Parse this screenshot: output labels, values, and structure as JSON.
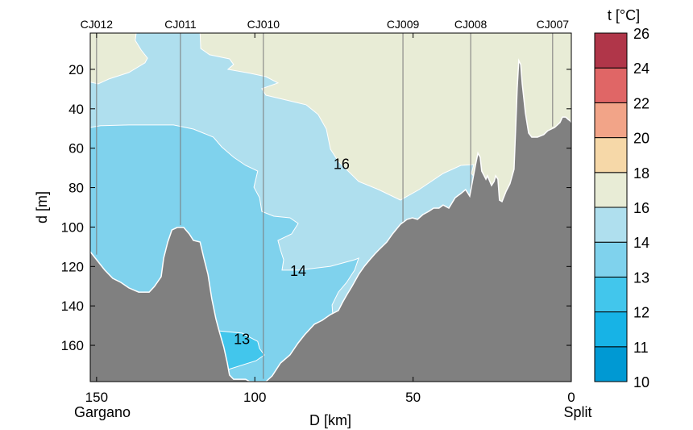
{
  "chart_data": {
    "type": "contour-section",
    "xlabel": "D [km]",
    "ylabel": "d [m]",
    "xlim": [
      152,
      0
    ],
    "ylim": [
      1.6,
      178.4
    ],
    "x_reversed": true,
    "y_reversed": true,
    "xticks": [
      150,
      100,
      50,
      0
    ],
    "yticks": [
      20,
      40,
      60,
      80,
      100,
      120,
      140,
      160
    ],
    "x_endpoint_labels": {
      "left": "Gargano",
      "right": "Split"
    },
    "grid": false,
    "colorbar": {
      "title": "t [°C]",
      "placement": "right",
      "levels": [
        10,
        11,
        12,
        13,
        14,
        16,
        18,
        20,
        22,
        24,
        26
      ],
      "colors": [
        "#0099d3",
        "#17b3e6",
        "#42c6ec",
        "#7fd2ed",
        "#afdfee",
        "#e8ecd6",
        "#f6d8a8",
        "#f2a488",
        "#e06666",
        "#b03649"
      ]
    },
    "stations": [
      {
        "name": "CJ012",
        "D": 150.0,
        "max_depth": 114
      },
      {
        "name": "CJ011",
        "D": 123.5,
        "max_depth": 99
      },
      {
        "name": "CJ010",
        "D": 97.3,
        "max_depth": 177
      },
      {
        "name": "CJ009",
        "D": 53.2,
        "max_depth": 98
      },
      {
        "name": "CJ008",
        "D": 31.8,
        "max_depth": 82
      },
      {
        "name": "CJ007",
        "D": 5.9,
        "max_depth": 49
      }
    ],
    "regions": [
      {
        "range": "16-18",
        "color": "#e8ecd6",
        "polygon": [
          [
            152,
            1.6
          ],
          [
            0,
            1.6
          ],
          [
            0,
            178.4
          ],
          [
            152,
            178.4
          ]
        ]
      },
      {
        "range": "14-16",
        "color": "#afdfee",
        "polygon": [
          [
            152,
            26.5
          ],
          [
            149.5,
            27.4
          ],
          [
            146.1,
            24.9
          ],
          [
            139.8,
            21.6
          ],
          [
            134.7,
            16.7
          ],
          [
            133.9,
            14.3
          ],
          [
            135.9,
            10.2
          ],
          [
            137.8,
            5.3
          ],
          [
            137.5,
            1.6
          ],
          [
            117.3,
            1.6
          ],
          [
            117.1,
            9.4
          ],
          [
            114.3,
            12.6
          ],
          [
            108,
            14.7
          ],
          [
            106.7,
            17.5
          ],
          [
            108.5,
            20
          ],
          [
            101.6,
            22
          ],
          [
            96.5,
            23.7
          ],
          [
            92.7,
            26.9
          ],
          [
            97.8,
            29.8
          ],
          [
            96.5,
            33.1
          ],
          [
            83.8,
            38
          ],
          [
            80,
            42.9
          ],
          [
            77.4,
            50.3
          ],
          [
            76.1,
            60.5
          ],
          [
            73.6,
            66.7
          ],
          [
            67.2,
            76.9
          ],
          [
            60.9,
            81
          ],
          [
            54,
            86.3
          ],
          [
            48.1,
            81
          ],
          [
            40.5,
            72.8
          ],
          [
            34.9,
            68.7
          ],
          [
            30.8,
            68.3
          ],
          [
            31.6,
            72.8
          ],
          [
            27.8,
            80
          ],
          [
            27.8,
            178.4
          ],
          [
            152,
            178.4
          ]
        ]
      },
      {
        "range": "13-14",
        "color": "#7fd2ed",
        "polygon": [
          [
            152,
            49.5
          ],
          [
            148.7,
            48.6
          ],
          [
            139.8,
            48.2
          ],
          [
            125.7,
            48.2
          ],
          [
            119.4,
            50.3
          ],
          [
            113.1,
            54.4
          ],
          [
            110.5,
            59.3
          ],
          [
            106.7,
            64.6
          ],
          [
            102.9,
            68.7
          ],
          [
            99.1,
            71.6
          ],
          [
            100.3,
            79.8
          ],
          [
            98.5,
            85.1
          ],
          [
            97.8,
            92.1
          ],
          [
            94,
            94.5
          ],
          [
            88.9,
            95.3
          ],
          [
            86.3,
            98.2
          ],
          [
            88.4,
            103.5
          ],
          [
            92.7,
            106.8
          ],
          [
            91.9,
            111.7
          ],
          [
            90.9,
            116.6
          ],
          [
            91.4,
            121.9
          ],
          [
            86.3,
            121.9
          ],
          [
            76.1,
            119.9
          ],
          [
            68.5,
            116.6
          ],
          [
            67.2,
            115.8
          ],
          [
            68.5,
            121.9
          ],
          [
            71,
            128.1
          ],
          [
            73.6,
            133
          ],
          [
            75.6,
            139.5
          ],
          [
            75.4,
            144.4
          ],
          [
            76.1,
            178.4
          ],
          [
            152,
            178.4
          ]
        ]
      },
      {
        "range": "12-13",
        "color": "#42c6ec",
        "polygon": [
          [
            111.8,
            152.6
          ],
          [
            104.1,
            153.8
          ],
          [
            99.1,
            158
          ],
          [
            98.5,
            161.6
          ],
          [
            97,
            164.9
          ],
          [
            99.6,
            167.8
          ],
          [
            108.5,
            172.3
          ],
          [
            110.5,
            161.6
          ]
        ]
      }
    ],
    "contour_labels": [
      {
        "text": "16",
        "D": 72.6,
        "d": 67.6
      },
      {
        "text": "14",
        "D": 86.3,
        "d": 122
      },
      {
        "text": "13",
        "D": 104.1,
        "d": 156.6
      }
    ],
    "bathymetry": {
      "color": "#808080",
      "profile": [
        [
          152,
          112.5
        ],
        [
          150,
          116.6
        ],
        [
          147.4,
          121.9
        ],
        [
          144.9,
          126
        ],
        [
          142.3,
          128.1
        ],
        [
          139.8,
          130.9
        ],
        [
          136.7,
          133
        ],
        [
          133.4,
          133
        ],
        [
          131.7,
          130.1
        ],
        [
          129.6,
          125.2
        ],
        [
          128.8,
          115.8
        ],
        [
          127.5,
          107.6
        ],
        [
          126.2,
          101.5
        ],
        [
          124.5,
          100.2
        ],
        [
          122.5,
          100.2
        ],
        [
          120.7,
          103.5
        ],
        [
          119.4,
          106.8
        ],
        [
          117.3,
          107.6
        ],
        [
          116.1,
          115.8
        ],
        [
          114.8,
          124
        ],
        [
          113.6,
          136.3
        ],
        [
          112.3,
          146.5
        ],
        [
          111.3,
          152.6
        ],
        [
          109.8,
          160.8
        ],
        [
          108.7,
          169
        ],
        [
          108,
          175.1
        ],
        [
          106.7,
          177.2
        ],
        [
          102.9,
          177.2
        ],
        [
          101.6,
          178.4
        ],
        [
          96.5,
          178.4
        ],
        [
          94.5,
          175.5
        ],
        [
          91.9,
          169
        ],
        [
          88.9,
          164.9
        ],
        [
          86.3,
          158.8
        ],
        [
          84.3,
          154.7
        ],
        [
          81.2,
          149.3
        ],
        [
          78.7,
          147.3
        ],
        [
          76.1,
          144.4
        ],
        [
          73.6,
          142.4
        ],
        [
          72.3,
          138.3
        ],
        [
          71,
          134.6
        ],
        [
          69.3,
          130.1
        ],
        [
          67.2,
          124
        ],
        [
          65.4,
          119.9
        ],
        [
          63.9,
          117
        ],
        [
          62.1,
          113.7
        ],
        [
          60.9,
          111.7
        ],
        [
          58.3,
          107.6
        ],
        [
          56.5,
          103.5
        ],
        [
          54,
          98.6
        ],
        [
          51.9,
          96.1
        ],
        [
          50.2,
          95.3
        ],
        [
          48.6,
          96.1
        ],
        [
          46.9,
          93.7
        ],
        [
          45.1,
          92.1
        ],
        [
          43.5,
          90.4
        ],
        [
          41.8,
          90.4
        ],
        [
          40.5,
          88.8
        ],
        [
          38.7,
          90.4
        ],
        [
          36.7,
          85.1
        ],
        [
          34.9,
          83
        ],
        [
          33.4,
          81
        ],
        [
          32.1,
          84.3
        ],
        [
          30.3,
          68.7
        ],
        [
          29.5,
          62.5
        ],
        [
          28.8,
          64.6
        ],
        [
          28.3,
          71.6
        ],
        [
          27,
          75.7
        ],
        [
          26.5,
          74
        ],
        [
          25.2,
          78.9
        ],
        [
          24.4,
          76.9
        ],
        [
          23.9,
          74
        ],
        [
          23.2,
          75.7
        ],
        [
          22.7,
          86.3
        ],
        [
          21.9,
          87.1
        ],
        [
          20.6,
          81.8
        ],
        [
          19.4,
          78.1
        ],
        [
          18.1,
          70.7
        ],
        [
          17.6,
          50.3
        ],
        [
          17.1,
          29.8
        ],
        [
          16.6,
          15.5
        ],
        [
          16,
          17.5
        ],
        [
          15.5,
          27.4
        ],
        [
          14.5,
          42.1
        ],
        [
          13.5,
          52.3
        ],
        [
          12.5,
          54.4
        ],
        [
          10.7,
          54.4
        ],
        [
          8.7,
          53.1
        ],
        [
          7.4,
          51.1
        ],
        [
          5.3,
          49.5
        ],
        [
          3.6,
          47
        ],
        [
          2.8,
          44.2
        ],
        [
          1.8,
          44.2
        ],
        [
          1,
          45.4
        ],
        [
          0.3,
          46.2
        ],
        [
          0,
          47
        ]
      ]
    }
  }
}
